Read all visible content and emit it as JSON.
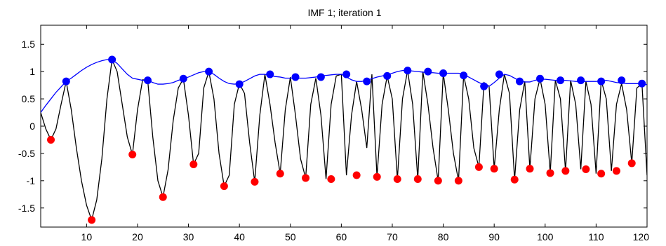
{
  "chart_data": {
    "type": "line",
    "title": "IMF 1;   iteration 1",
    "xlabel": "",
    "ylabel": "",
    "xlim": [
      1,
      120
    ],
    "ylim": [
      -1.85,
      1.85
    ],
    "xticks": [
      10,
      20,
      30,
      40,
      50,
      60,
      70,
      80,
      90,
      100,
      110,
      120
    ],
    "yticks": [
      -1.5,
      -1,
      -0.5,
      0,
      0.5,
      1,
      1.5
    ],
    "grid": false,
    "colors": {
      "signal": "#000000",
      "upper_envelope": "#0000ff",
      "maxima": "#0000ff",
      "minima": "#ff0000"
    },
    "signal": {
      "x": [
        1,
        2,
        3,
        4,
        5,
        6,
        7,
        8,
        9,
        10,
        11,
        12,
        13,
        14,
        15,
        16,
        17,
        18,
        19,
        20,
        21,
        22,
        23,
        24,
        25,
        26,
        27,
        28,
        29,
        30,
        31,
        32,
        33,
        34,
        35,
        36,
        37,
        38,
        39,
        40,
        41,
        42,
        43,
        44,
        45,
        46,
        47,
        48,
        49,
        50,
        51,
        52,
        53,
        54,
        55,
        56,
        57,
        58,
        59,
        60,
        61,
        62,
        63,
        64,
        65,
        66,
        67,
        68,
        69,
        70,
        71,
        72,
        73,
        74,
        75,
        76,
        77,
        78,
        79,
        80,
        81,
        82,
        83,
        84,
        85,
        86,
        87,
        88,
        89,
        90,
        91,
        92,
        93,
        94,
        95,
        96,
        97,
        98,
        99,
        100,
        101,
        102,
        103,
        104,
        105,
        106,
        107,
        108,
        109,
        110,
        111,
        112,
        113,
        114,
        115,
        116,
        117,
        118,
        119,
        120
      ],
      "values": [
        0.25,
        -0.05,
        -0.25,
        -0.05,
        0.4,
        0.82,
        0.3,
        -0.4,
        -1.0,
        -1.45,
        -1.72,
        -1.35,
        -0.6,
        0.5,
        1.22,
        1.0,
        0.4,
        -0.2,
        -0.52,
        0.3,
        0.85,
        0.84,
        -0.2,
        -1.0,
        -1.3,
        -0.8,
        0.1,
        0.7,
        0.87,
        0.2,
        -0.7,
        -0.5,
        0.7,
        1.0,
        0.5,
        -0.5,
        -1.1,
        -0.9,
        0.4,
        0.78,
        0.6,
        -0.3,
        -1.02,
        0.2,
        0.95,
        0.4,
        -0.3,
        -0.87,
        0.3,
        0.9,
        0.2,
        -0.6,
        -0.95,
        0.4,
        0.88,
        0.2,
        -0.97,
        0.4,
        0.92,
        0.95,
        -0.9,
        0.2,
        0.82,
        0.3,
        -0.4,
        0.95,
        -0.93,
        0.4,
        0.92,
        0.5,
        -0.97,
        0.5,
        1.02,
        0.4,
        -0.97,
        1.0,
        0.4,
        -0.4,
        -1.0,
        0.97,
        0.3,
        -0.5,
        -1.0,
        0.93,
        0.5,
        -0.4,
        -0.75,
        0.8,
        0.73,
        -0.78,
        0.3,
        0.95,
        0.6,
        -0.98,
        0.3,
        0.82,
        -0.78,
        0.5,
        0.87,
        0.4,
        -0.86,
        0.84,
        0.5,
        -0.82,
        0.84,
        0.4,
        -0.79,
        0.82,
        0.4,
        -0.87,
        0.84,
        0.5,
        -0.82,
        0.4,
        0.78,
        0.3,
        -0.68,
        0.7,
        0.78,
        -0.9
      ]
    },
    "upper_envelope": {
      "x": [
        1,
        2,
        3,
        4,
        5,
        6,
        7,
        8,
        9,
        10,
        11,
        12,
        13,
        14,
        15,
        16,
        17,
        18,
        19,
        20,
        21,
        22,
        23,
        24,
        25,
        26,
        27,
        28,
        29,
        30,
        31,
        32,
        33,
        34,
        35,
        36,
        37,
        38,
        39,
        40,
        41,
        42,
        43,
        44,
        45,
        46,
        47,
        48,
        49,
        50,
        51,
        52,
        53,
        54,
        55,
        56,
        57,
        58,
        59,
        60,
        61,
        62,
        63,
        64,
        65,
        66,
        67,
        68,
        69,
        70,
        71,
        72,
        73,
        74,
        75,
        76,
        77,
        78,
        79,
        80,
        81,
        82,
        83,
        84,
        85,
        86,
        87,
        88,
        89,
        90,
        91,
        92,
        93,
        94,
        95,
        96,
        97,
        98,
        99,
        100,
        101,
        102,
        103,
        104,
        105,
        106,
        107,
        108,
        109,
        110,
        111,
        112,
        113,
        114,
        115,
        116,
        117,
        118,
        119,
        120
      ],
      "values": [
        0.25,
        0.38,
        0.5,
        0.62,
        0.72,
        0.82,
        0.88,
        0.95,
        1.02,
        1.08,
        1.13,
        1.17,
        1.2,
        1.22,
        1.22,
        1.15,
        1.05,
        0.95,
        0.88,
        0.86,
        0.84,
        0.84,
        0.8,
        0.77,
        0.77,
        0.78,
        0.8,
        0.84,
        0.87,
        0.9,
        0.94,
        0.98,
        1.0,
        1.0,
        0.95,
        0.88,
        0.82,
        0.78,
        0.77,
        0.78,
        0.82,
        0.87,
        0.92,
        0.95,
        0.95,
        0.93,
        0.91,
        0.9,
        0.88,
        0.88,
        0.88,
        0.88,
        0.88,
        0.89,
        0.9,
        0.92,
        0.93,
        0.94,
        0.95,
        0.95,
        0.9,
        0.85,
        0.82,
        0.82,
        0.84,
        0.87,
        0.9,
        0.92,
        0.94,
        0.97,
        1.0,
        1.02,
        1.02,
        1.01,
        1.0,
        0.99,
        0.98,
        0.98,
        0.97,
        0.97,
        0.97,
        0.97,
        0.97,
        0.95,
        0.9,
        0.85,
        0.8,
        0.76,
        0.73,
        0.8,
        0.88,
        0.95,
        0.93,
        0.88,
        0.83,
        0.81,
        0.81,
        0.84,
        0.86,
        0.86,
        0.85,
        0.84,
        0.84,
        0.84,
        0.83,
        0.82,
        0.82,
        0.82,
        0.82,
        0.82,
        0.83,
        0.84,
        0.82,
        0.8,
        0.79,
        0.78,
        0.78,
        0.78,
        0.78,
        0.76
      ]
    },
    "maxima": {
      "x": [
        6,
        15,
        22,
        29,
        34,
        40,
        46,
        51,
        56,
        61,
        65,
        69,
        73,
        77,
        80,
        84,
        88,
        91,
        95,
        99,
        103,
        107,
        111,
        115,
        119
      ],
      "values": [
        0.82,
        1.22,
        0.84,
        0.87,
        1.0,
        0.77,
        0.95,
        0.9,
        0.9,
        0.95,
        0.82,
        0.92,
        1.02,
        1.0,
        0.97,
        0.93,
        0.73,
        0.95,
        0.82,
        0.87,
        0.84,
        0.84,
        0.82,
        0.84,
        0.78
      ]
    },
    "minima": {
      "x": [
        3,
        11,
        19,
        25,
        31,
        37,
        43,
        48,
        53,
        58,
        63,
        67,
        71,
        75,
        79,
        83,
        87,
        90,
        94,
        97,
        101,
        104,
        108,
        111,
        114,
        117
      ],
      "values": [
        -0.25,
        -1.72,
        -0.52,
        -1.3,
        -0.7,
        -1.1,
        -1.02,
        -0.87,
        -0.95,
        -0.97,
        -0.9,
        -0.93,
        -0.97,
        -0.97,
        -1.0,
        -1.0,
        -0.75,
        -0.78,
        -0.98,
        -0.78,
        -0.86,
        -0.82,
        -0.79,
        -0.87,
        -0.82,
        -0.68
      ]
    }
  }
}
